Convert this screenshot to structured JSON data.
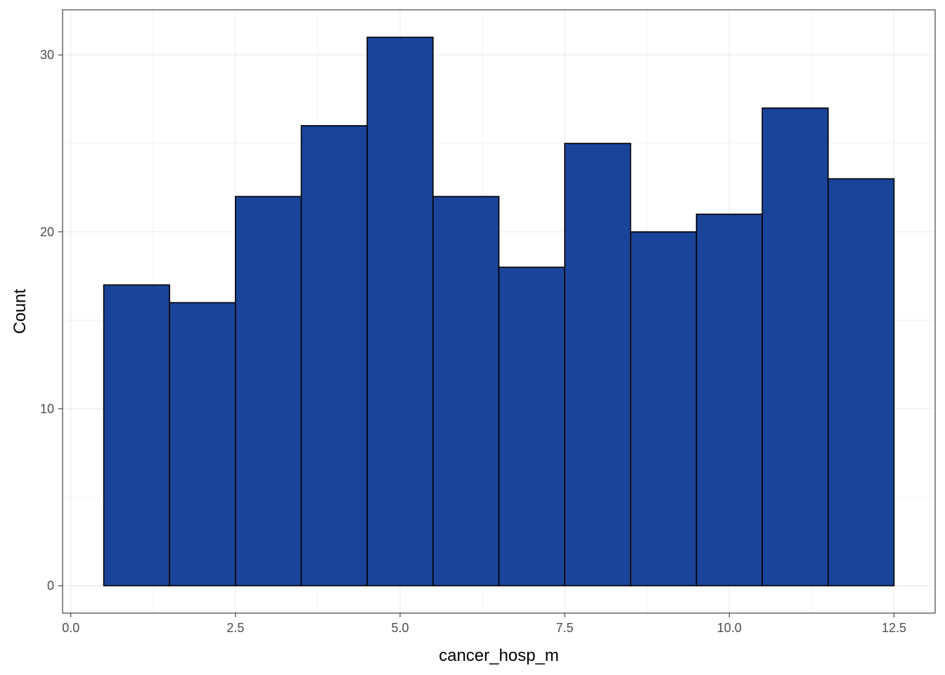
{
  "chart_data": {
    "type": "bar",
    "subtype": "histogram",
    "title": "",
    "xlabel": "cancer_hosp_m",
    "ylabel": "Count",
    "bins": [
      {
        "x0": 0.5,
        "x1": 1.5,
        "count": 17
      },
      {
        "x0": 1.5,
        "x1": 2.5,
        "count": 16
      },
      {
        "x0": 2.5,
        "x1": 3.5,
        "count": 22
      },
      {
        "x0": 3.5,
        "x1": 4.5,
        "count": 26
      },
      {
        "x0": 4.5,
        "x1": 5.5,
        "count": 31
      },
      {
        "x0": 5.5,
        "x1": 6.5,
        "count": 22
      },
      {
        "x0": 6.5,
        "x1": 7.5,
        "count": 18
      },
      {
        "x0": 7.5,
        "x1": 8.5,
        "count": 25
      },
      {
        "x0": 8.5,
        "x1": 9.5,
        "count": 20
      },
      {
        "x0": 9.5,
        "x1": 10.5,
        "count": 21
      },
      {
        "x0": 10.5,
        "x1": 11.5,
        "count": 27
      },
      {
        "x0": 11.5,
        "x1": 12.5,
        "count": 23
      }
    ],
    "xlim": [
      -0.125,
      13.125
    ],
    "ylim": [
      -1.55,
      32.55
    ],
    "x_ticks": [
      0,
      2.5,
      5,
      7.5,
      10,
      12.5
    ],
    "x_tick_labels": [
      "0.0",
      "2.5",
      "5.0",
      "7.5",
      "10.0",
      "12.5"
    ],
    "y_ticks": [
      0,
      10,
      20,
      30
    ],
    "y_tick_labels": [
      "0",
      "10",
      "20",
      "30"
    ],
    "grid": true,
    "bar_fill": "#1a4499",
    "bar_stroke": "#000000",
    "grid_color": "#ebebeb"
  }
}
